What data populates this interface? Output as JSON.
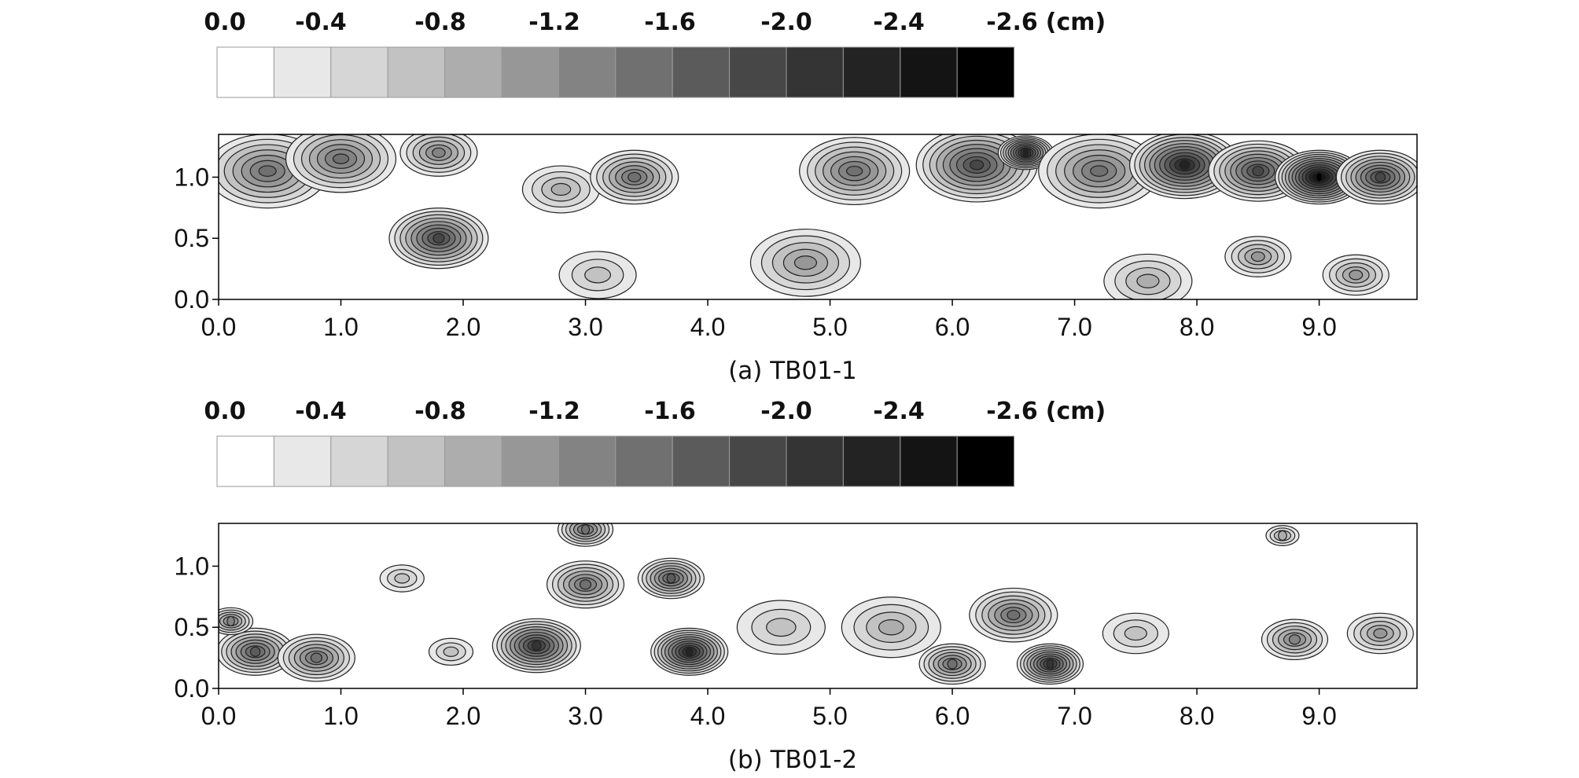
{
  "chart_data": [
    {
      "type": "heatmap",
      "title": "(a) TB01-1",
      "colorbar": {
        "levels": [
          "0.0",
          "-0.4",
          "-0.8",
          "-1.2",
          "-1.6",
          "-2.0",
          "-2.4",
          "-2.6"
        ],
        "unit": "(cm)",
        "colors": [
          "#ffffff",
          "#e8e8e8",
          "#d6d6d6",
          "#c2c2c2",
          "#adadad",
          "#979797",
          "#838383",
          "#707070",
          "#5b5b5b",
          "#474747",
          "#343434",
          "#232323",
          "#141414",
          "#000000"
        ]
      },
      "x_ticks": [
        "0.0",
        "1.0",
        "2.0",
        "3.0",
        "4.0",
        "5.0",
        "6.0",
        "7.0",
        "8.0",
        "9.0"
      ],
      "y_ticks": [
        "0.0",
        "0.5",
        "1.0"
      ],
      "xlim": [
        0,
        9.8
      ],
      "ylim": [
        0,
        1.35
      ],
      "settlement_blobs": [
        {
          "x": 0.4,
          "y": 1.05,
          "r": 0.55,
          "v": -1.4
        },
        {
          "x": 1.0,
          "y": 1.15,
          "r": 0.5,
          "v": -1.3
        },
        {
          "x": 1.8,
          "y": 0.5,
          "r": 0.45,
          "v": -1.9
        },
        {
          "x": 1.8,
          "y": 1.2,
          "r": 0.35,
          "v": -1.1
        },
        {
          "x": 2.8,
          "y": 0.9,
          "r": 0.35,
          "v": -0.8
        },
        {
          "x": 3.4,
          "y": 1.0,
          "r": 0.4,
          "v": -1.4
        },
        {
          "x": 3.1,
          "y": 0.2,
          "r": 0.35,
          "v": -0.7
        },
        {
          "x": 4.8,
          "y": 0.3,
          "r": 0.5,
          "v": -0.9
        },
        {
          "x": 5.2,
          "y": 1.05,
          "r": 0.5,
          "v": -1.4
        },
        {
          "x": 6.2,
          "y": 1.1,
          "r": 0.55,
          "v": -1.8
        },
        {
          "x": 6.6,
          "y": 1.2,
          "r": 0.25,
          "v": -2.2
        },
        {
          "x": 7.2,
          "y": 1.05,
          "r": 0.55,
          "v": -1.3
        },
        {
          "x": 7.9,
          "y": 1.1,
          "r": 0.5,
          "v": -2.2
        },
        {
          "x": 8.5,
          "y": 1.05,
          "r": 0.45,
          "v": -1.8
        },
        {
          "x": 9.0,
          "y": 1.0,
          "r": 0.4,
          "v": -2.5
        },
        {
          "x": 9.5,
          "y": 1.0,
          "r": 0.4,
          "v": -1.9
        },
        {
          "x": 8.5,
          "y": 0.35,
          "r": 0.3,
          "v": -0.9
        },
        {
          "x": 9.3,
          "y": 0.2,
          "r": 0.3,
          "v": -1.0
        },
        {
          "x": 7.6,
          "y": 0.15,
          "r": 0.4,
          "v": -0.8
        }
      ]
    },
    {
      "type": "heatmap",
      "title": "(b) TB01-2",
      "colorbar": {
        "levels": [
          "0.0",
          "-0.4",
          "-0.8",
          "-1.2",
          "-1.6",
          "-2.0",
          "-2.4",
          "-2.6"
        ],
        "unit": "(cm)",
        "colors": [
          "#ffffff",
          "#e8e8e8",
          "#d6d6d6",
          "#c2c2c2",
          "#adadad",
          "#979797",
          "#838383",
          "#707070",
          "#5b5b5b",
          "#474747",
          "#343434",
          "#232323",
          "#141414",
          "#000000"
        ]
      },
      "x_ticks": [
        "0.0",
        "1.0",
        "2.0",
        "3.0",
        "4.0",
        "5.0",
        "6.0",
        "7.0",
        "8.0",
        "9.0"
      ],
      "y_ticks": [
        "0.0",
        "0.5",
        "1.0"
      ],
      "xlim": [
        0,
        9.8
      ],
      "ylim": [
        0,
        1.35
      ],
      "settlement_blobs": [
        {
          "x": 0.3,
          "y": 0.3,
          "r": 0.35,
          "v": -1.6
        },
        {
          "x": 0.8,
          "y": 0.25,
          "r": 0.35,
          "v": -1.3
        },
        {
          "x": 0.1,
          "y": 0.55,
          "r": 0.2,
          "v": -1.2
        },
        {
          "x": 1.5,
          "y": 0.9,
          "r": 0.2,
          "v": -0.6
        },
        {
          "x": 1.9,
          "y": 0.3,
          "r": 0.2,
          "v": -0.7
        },
        {
          "x": 2.6,
          "y": 0.35,
          "r": 0.4,
          "v": -2.0
        },
        {
          "x": 3.0,
          "y": 0.85,
          "r": 0.35,
          "v": -1.4
        },
        {
          "x": 3.0,
          "y": 1.3,
          "r": 0.25,
          "v": -1.3
        },
        {
          "x": 3.85,
          "y": 0.3,
          "r": 0.35,
          "v": -2.3
        },
        {
          "x": 3.7,
          "y": 0.9,
          "r": 0.3,
          "v": -1.6
        },
        {
          "x": 4.6,
          "y": 0.5,
          "r": 0.4,
          "v": -0.7
        },
        {
          "x": 5.5,
          "y": 0.5,
          "r": 0.45,
          "v": -0.8
        },
        {
          "x": 6.0,
          "y": 0.2,
          "r": 0.3,
          "v": -1.4
        },
        {
          "x": 6.5,
          "y": 0.6,
          "r": 0.4,
          "v": -1.4
        },
        {
          "x": 6.8,
          "y": 0.2,
          "r": 0.3,
          "v": -2.0
        },
        {
          "x": 7.5,
          "y": 0.45,
          "r": 0.3,
          "v": -0.6
        },
        {
          "x": 8.8,
          "y": 0.4,
          "r": 0.3,
          "v": -1.1
        },
        {
          "x": 9.5,
          "y": 0.45,
          "r": 0.3,
          "v": -1.0
        },
        {
          "x": 8.7,
          "y": 1.25,
          "r": 0.15,
          "v": -0.8
        }
      ]
    }
  ]
}
